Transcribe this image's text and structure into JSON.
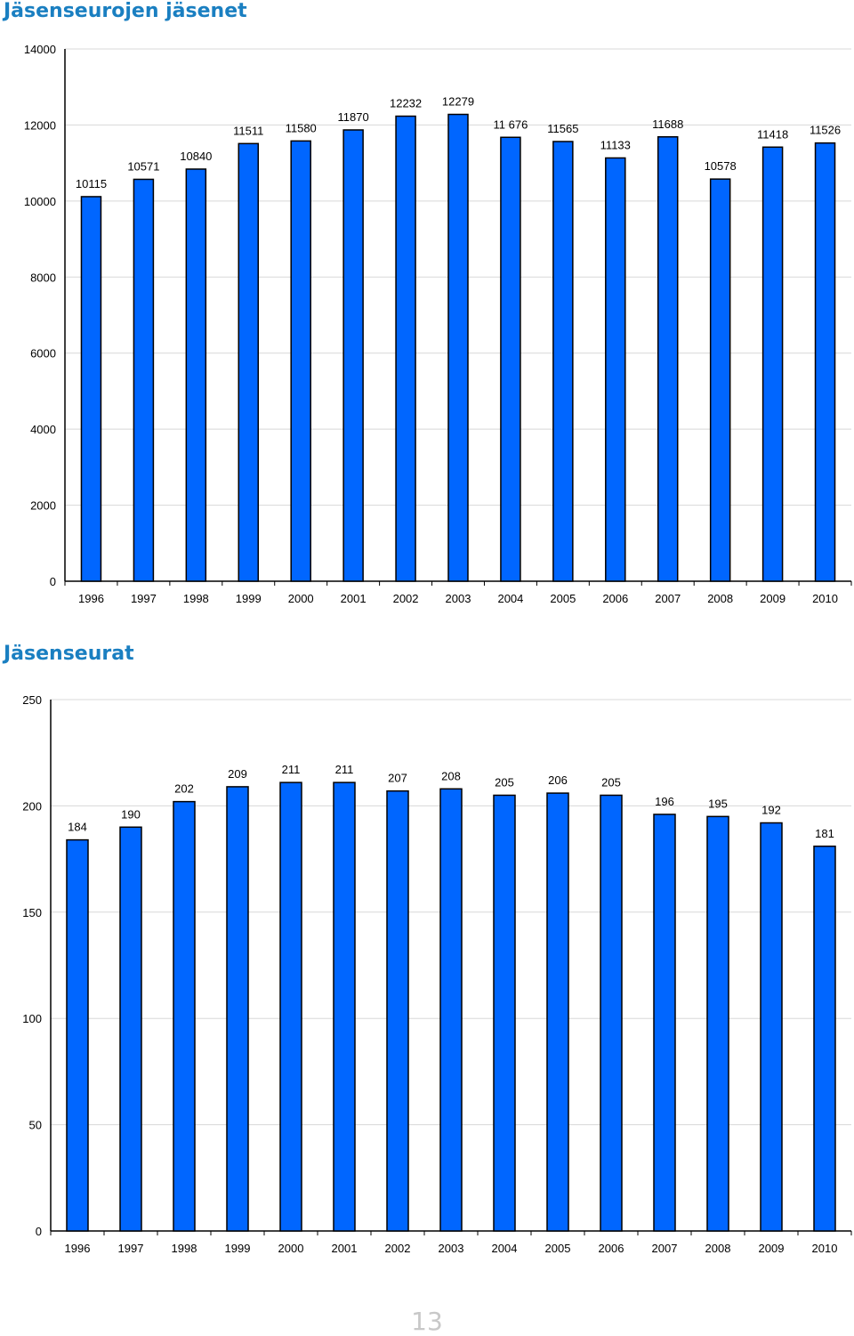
{
  "headings": {
    "chart1": "Jäsenseurojen jäsenet",
    "chart2": "Jäsenseurat"
  },
  "page_number": "13",
  "colors": {
    "bar": "#0066ff",
    "bar_edge": "#000000",
    "grid": "#d8d8d8",
    "heading": "#1a7fc1"
  },
  "chart_data": [
    {
      "type": "bar",
      "title": "Jäsenseurojen jäsenet",
      "categories": [
        "1996",
        "1997",
        "1998",
        "1999",
        "2000",
        "2001",
        "2002",
        "2003",
        "2004",
        "2005",
        "2006",
        "2007",
        "2008",
        "2009",
        "2010"
      ],
      "values": [
        10115,
        10571,
        10840,
        11511,
        11580,
        11870,
        12232,
        12279,
        11676,
        11565,
        11133,
        11688,
        10578,
        11418,
        11526
      ],
      "data_labels": [
        "10115",
        "10571",
        "10840",
        "11511",
        "11580",
        "11870",
        "12232",
        "12279",
        "11 676",
        "11565",
        "11133",
        "11688",
        "10578",
        "11418",
        "11526"
      ],
      "yticks": [
        "0",
        "2000",
        "4000",
        "6000",
        "8000",
        "10000",
        "12000",
        "14000"
      ],
      "ylim": [
        0,
        14000
      ],
      "xlabel": "",
      "ylabel": "",
      "grid": true,
      "legend": false
    },
    {
      "type": "bar",
      "title": "Jäsenseurat",
      "categories": [
        "1996",
        "1997",
        "1998",
        "1999",
        "2000",
        "2001",
        "2002",
        "2003",
        "2004",
        "2005",
        "2006",
        "2007",
        "2008",
        "2009",
        "2010"
      ],
      "values": [
        184,
        190,
        202,
        209,
        211,
        211,
        207,
        208,
        205,
        206,
        205,
        196,
        195,
        192,
        181
      ],
      "data_labels": [
        "184",
        "190",
        "202",
        "209",
        "211",
        "211",
        "207",
        "208",
        "205",
        "206",
        "205",
        "196",
        "195",
        "192",
        "181"
      ],
      "yticks": [
        "0",
        "50",
        "100",
        "150",
        "200",
        "250"
      ],
      "ylim": [
        0,
        250
      ],
      "xlabel": "",
      "ylabel": "",
      "grid": true,
      "legend": false
    }
  ]
}
